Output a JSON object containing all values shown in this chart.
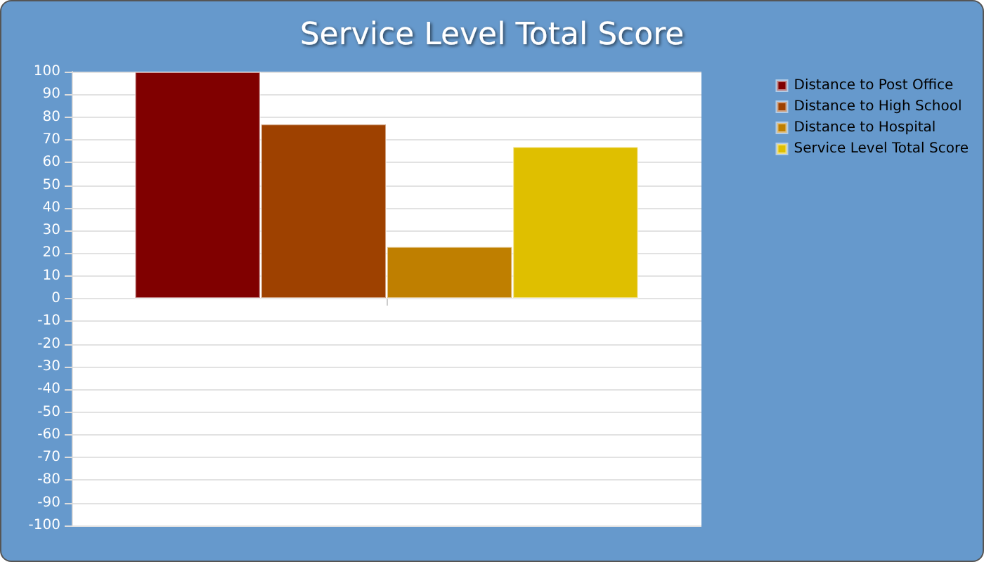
{
  "chart_data": {
    "type": "bar",
    "title": "Service Level Total Score",
    "categories": [
      null
    ],
    "series": [
      {
        "name": "Distance to Post Office",
        "color": "#800000",
        "values": [
          100
        ]
      },
      {
        "name": "Distance to High School",
        "color": "#9e4100",
        "values": [
          77
        ]
      },
      {
        "name": "Distance to Hospital",
        "color": "#bf7f00",
        "values": [
          23
        ]
      },
      {
        "name": "Service Level Total Score",
        "color": "#dfbf00",
        "values": [
          67
        ]
      }
    ],
    "ylim": [
      -100,
      100
    ],
    "yticks": [
      -100,
      -90,
      -80,
      -70,
      -60,
      -50,
      -40,
      -30,
      -20,
      -10,
      0,
      10,
      20,
      30,
      40,
      50,
      60,
      70,
      80,
      90,
      100
    ],
    "grid": "y",
    "legend": "right"
  }
}
